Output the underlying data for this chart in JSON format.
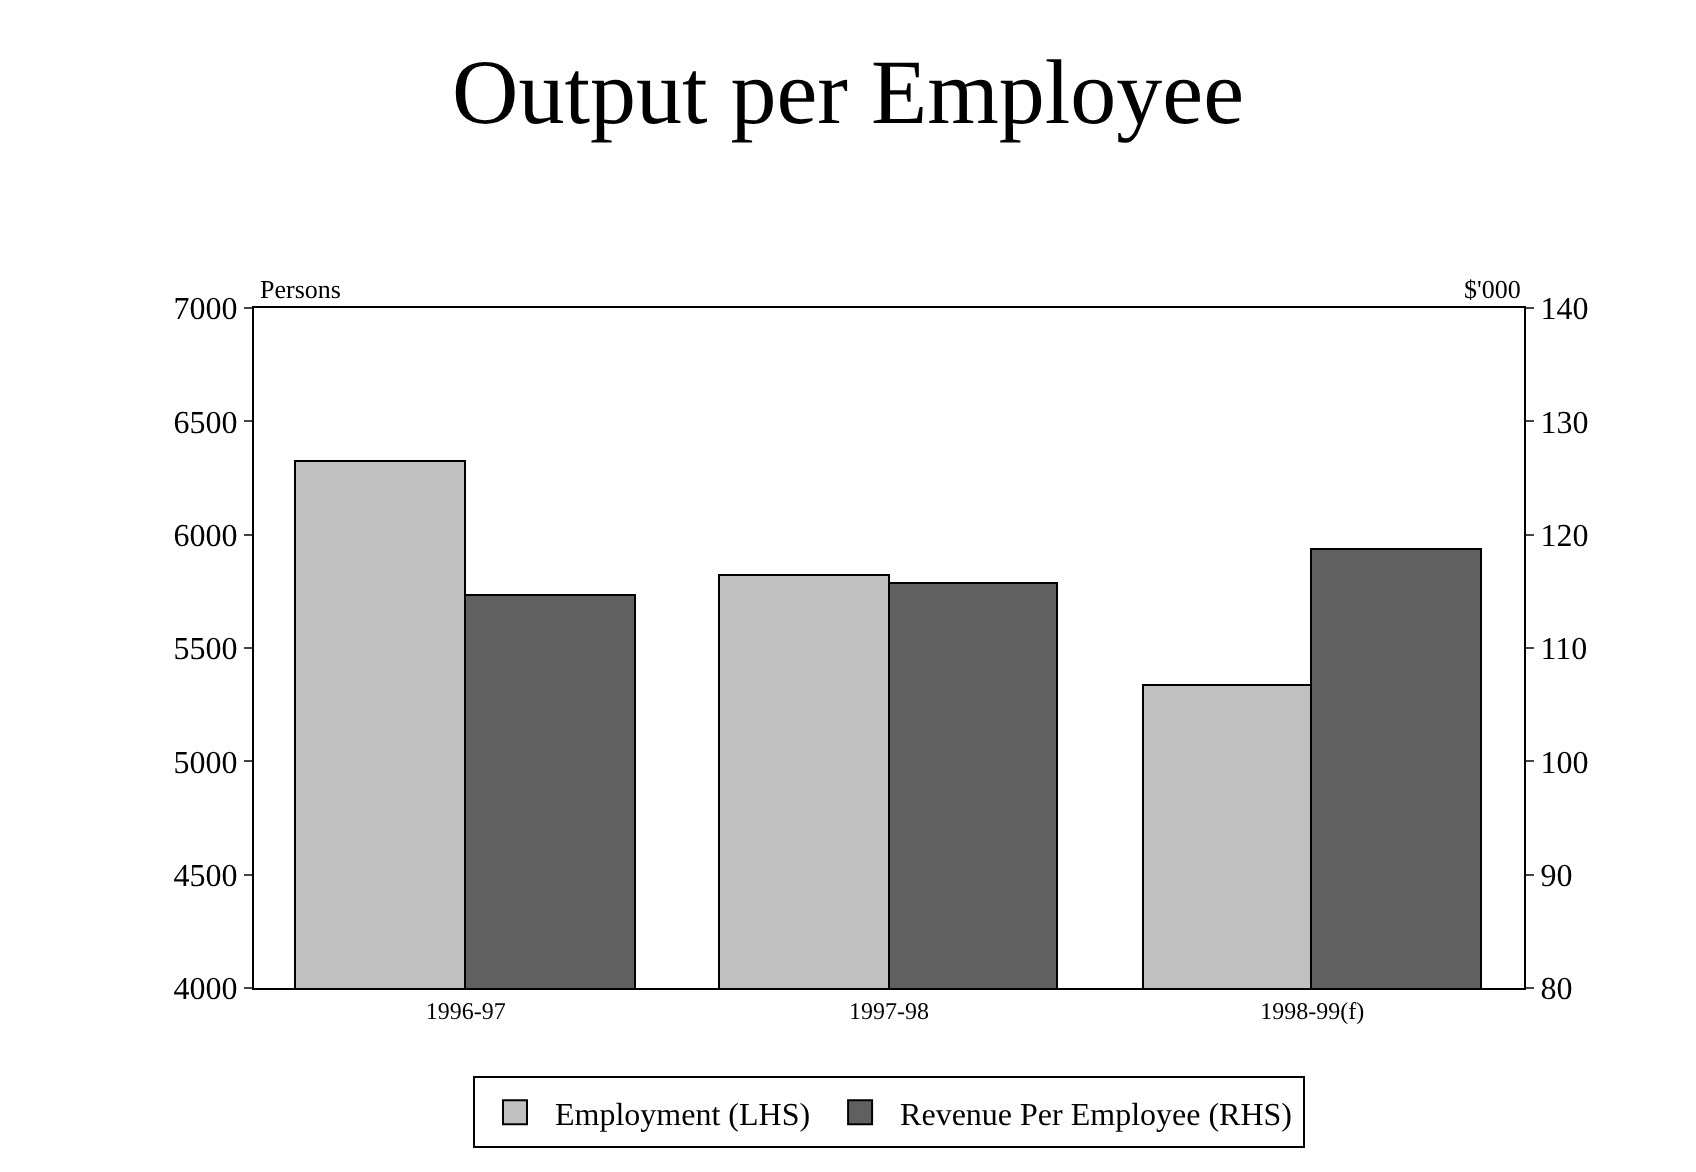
{
  "chart_data": {
    "type": "bar",
    "title": "Output per Employee",
    "ylabel": "Persons",
    "y2label": "$'000",
    "categories": [
      "1996-97",
      "1997-98",
      "1998-99(f)"
    ],
    "series": [
      {
        "name": "Employment (LHS)",
        "color": "#c0c0c0",
        "values": [
          6320,
          5820,
          5330
        ]
      },
      {
        "name": "Revenue Per Employee (RHS)",
        "color": "#606060",
        "values": [
          114.6,
          115.7,
          118.6
        ],
        "axis": "y2"
      }
    ],
    "ylim": [
      4000,
      7000
    ],
    "yticks": [
      4000,
      4500,
      5000,
      5500,
      6000,
      6500,
      7000
    ],
    "y2lim": [
      80,
      140
    ],
    "y2ticks": [
      80,
      90,
      100,
      110,
      120,
      130,
      140
    ],
    "legend": "bottom"
  }
}
